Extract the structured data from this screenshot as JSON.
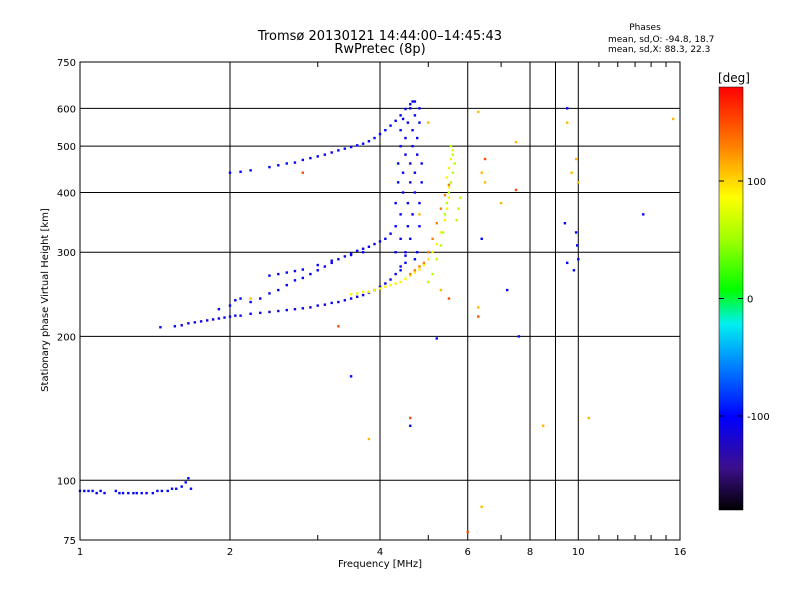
{
  "chart_data": {
    "type": "scatter",
    "title": "Tromsø 20130121 14:44:00–14:45:43",
    "subtitle": "RwPretec (8p)",
    "xlabel": "Frequency [MHz]",
    "ylabel": "Stationary phase Virtual Height [km]",
    "x_scale": "log",
    "y_scale": "log",
    "xlim": [
      1,
      16
    ],
    "ylim": [
      75,
      750
    ],
    "x_ticks": [
      1,
      2,
      4,
      6,
      8,
      10,
      16
    ],
    "x_tick_labels": [
      "1",
      "2",
      "4",
      "6",
      "8",
      "10",
      "16"
    ],
    "x_minor_ticks": [
      3,
      5,
      7,
      9,
      11,
      12,
      13,
      14,
      15
    ],
    "y_ticks": [
      75,
      100,
      200,
      300,
      400,
      500,
      600,
      750
    ],
    "y_tick_labels": [
      "75",
      "100",
      "200",
      "300",
      "400",
      "500",
      "600",
      "750"
    ],
    "grid": true,
    "phases_info": {
      "heading": "Phases",
      "line1": "mean, sd,O: -94.8, 18.7",
      "line2": "mean, sd,X:  88.3, 22.3"
    },
    "colorbar": {
      "label": "[deg]",
      "range": [
        -180,
        180
      ],
      "ticks": [
        100,
        0,
        -100
      ],
      "tick_labels": [
        "100",
        "0",
        "-100"
      ]
    },
    "traces": [
      {
        "phase": -100,
        "points": [
          [
            1.0,
            95
          ],
          [
            1.02,
            95
          ],
          [
            1.04,
            95
          ],
          [
            1.06,
            95
          ],
          [
            1.08,
            94
          ],
          [
            1.1,
            95
          ],
          [
            1.12,
            94
          ],
          [
            1.18,
            95
          ],
          [
            1.2,
            94
          ],
          [
            1.22,
            94
          ],
          [
            1.25,
            94
          ],
          [
            1.28,
            94
          ],
          [
            1.3,
            94
          ],
          [
            1.33,
            94
          ],
          [
            1.36,
            94
          ],
          [
            1.4,
            94
          ],
          [
            1.43,
            95
          ],
          [
            1.46,
            95
          ],
          [
            1.5,
            95
          ],
          [
            1.53,
            96
          ],
          [
            1.56,
            96
          ],
          [
            1.6,
            97
          ],
          [
            1.63,
            99
          ],
          [
            1.65,
            101
          ],
          [
            1.67,
            96
          ]
        ]
      },
      {
        "phase": -110,
        "points": [
          [
            1.45,
            209
          ],
          [
            1.55,
            210
          ],
          [
            1.6,
            211
          ],
          [
            1.65,
            213
          ],
          [
            1.7,
            214
          ],
          [
            1.75,
            215
          ],
          [
            1.8,
            216
          ],
          [
            1.85,
            217
          ],
          [
            1.9,
            218
          ],
          [
            1.95,
            219
          ],
          [
            2.0,
            220
          ],
          [
            2.05,
            221
          ],
          [
            2.1,
            221
          ],
          [
            2.2,
            223
          ],
          [
            2.3,
            224
          ],
          [
            2.4,
            225
          ],
          [
            2.5,
            226
          ],
          [
            2.6,
            227
          ],
          [
            2.7,
            228
          ],
          [
            2.8,
            229
          ],
          [
            2.9,
            230
          ],
          [
            3.0,
            232
          ],
          [
            3.1,
            233
          ],
          [
            3.2,
            235
          ],
          [
            3.3,
            236
          ],
          [
            3.4,
            238
          ],
          [
            3.5,
            240
          ],
          [
            3.6,
            242
          ],
          [
            3.7,
            244
          ],
          [
            3.8,
            247
          ],
          [
            3.9,
            250
          ],
          [
            4.0,
            254
          ],
          [
            4.1,
            258
          ],
          [
            4.2,
            263
          ],
          [
            4.3,
            270
          ],
          [
            4.4,
            280
          ],
          [
            4.5,
            295
          ]
        ]
      },
      {
        "phase": -105,
        "points": [
          [
            1.9,
            228
          ],
          [
            2.0,
            232
          ],
          [
            2.05,
            238
          ],
          [
            2.1,
            240
          ],
          [
            2.2,
            236
          ],
          [
            2.3,
            240
          ],
          [
            2.4,
            246
          ],
          [
            2.5,
            250
          ],
          [
            2.6,
            256
          ],
          [
            2.7,
            262
          ],
          [
            2.8,
            265
          ],
          [
            2.9,
            270
          ],
          [
            3.0,
            275
          ],
          [
            3.1,
            280
          ],
          [
            3.2,
            285
          ],
          [
            3.3,
            290
          ],
          [
            3.4,
            294
          ],
          [
            3.5,
            298
          ],
          [
            3.6,
            302
          ],
          [
            3.7,
            305
          ],
          [
            3.8,
            308
          ],
          [
            3.9,
            312
          ],
          [
            4.0,
            316
          ],
          [
            4.1,
            320
          ],
          [
            4.2,
            328
          ]
        ]
      },
      {
        "phase": -100,
        "points": [
          [
            2.4,
            268
          ],
          [
            2.5,
            270
          ],
          [
            2.6,
            272
          ],
          [
            2.7,
            274
          ],
          [
            2.8,
            276
          ],
          [
            3.0,
            282
          ],
          [
            3.2,
            288
          ],
          [
            3.5,
            296
          ],
          [
            3.7,
            300
          ]
        ]
      },
      {
        "phase": -100,
        "points": [
          [
            2.0,
            440
          ],
          [
            2.1,
            442
          ],
          [
            2.2,
            445
          ],
          [
            2.4,
            452
          ],
          [
            2.5,
            456
          ],
          [
            2.6,
            460
          ],
          [
            2.7,
            462
          ],
          [
            2.8,
            468
          ],
          [
            2.9,
            472
          ],
          [
            3.0,
            476
          ],
          [
            3.1,
            480
          ],
          [
            3.2,
            485
          ],
          [
            3.3,
            490
          ],
          [
            3.4,
            494
          ],
          [
            3.5,
            498
          ],
          [
            3.6,
            502
          ],
          [
            3.7,
            506
          ],
          [
            3.8,
            512
          ],
          [
            3.9,
            520
          ],
          [
            4.0,
            530
          ],
          [
            4.1,
            540
          ],
          [
            4.2,
            552
          ],
          [
            4.3,
            565
          ],
          [
            4.4,
            580
          ],
          [
            4.5,
            598
          ],
          [
            4.6,
            612
          ],
          [
            4.65,
            620
          ]
        ]
      },
      {
        "phase": -105,
        "points": [
          [
            4.3,
            300
          ],
          [
            4.3,
            340
          ],
          [
            4.3,
            380
          ],
          [
            4.35,
            420
          ],
          [
            4.35,
            460
          ],
          [
            4.4,
            500
          ],
          [
            4.4,
            540
          ],
          [
            4.45,
            570
          ],
          [
            4.4,
            320
          ],
          [
            4.4,
            360
          ],
          [
            4.45,
            400
          ],
          [
            4.45,
            440
          ],
          [
            4.5,
            480
          ],
          [
            4.5,
            520
          ],
          [
            4.55,
            560
          ],
          [
            4.6,
            600
          ],
          [
            4.5,
            300
          ],
          [
            4.55,
            340
          ],
          [
            4.55,
            380
          ],
          [
            4.6,
            420
          ],
          [
            4.6,
            460
          ],
          [
            4.65,
            500
          ],
          [
            4.65,
            540
          ],
          [
            4.7,
            580
          ],
          [
            4.7,
            620
          ],
          [
            4.6,
            320
          ],
          [
            4.65,
            360
          ],
          [
            4.7,
            400
          ],
          [
            4.7,
            440
          ],
          [
            4.75,
            480
          ],
          [
            4.75,
            520
          ],
          [
            4.8,
            560
          ],
          [
            4.8,
            600
          ],
          [
            4.75,
            300
          ],
          [
            4.8,
            340
          ],
          [
            4.8,
            380
          ],
          [
            4.85,
            420
          ],
          [
            4.85,
            460
          ],
          [
            4.7,
            290
          ],
          [
            4.5,
            285
          ],
          [
            4.4,
            275
          ]
        ]
      },
      {
        "phase": 90,
        "points": [
          [
            3.5,
            245
          ],
          [
            3.6,
            246
          ],
          [
            3.7,
            248
          ],
          [
            3.8,
            248
          ],
          [
            3.9,
            250
          ],
          [
            4.0,
            252
          ],
          [
            4.1,
            254
          ],
          [
            4.2,
            256
          ],
          [
            4.3,
            258
          ],
          [
            4.4,
            260
          ],
          [
            4.5,
            264
          ],
          [
            4.6,
            268
          ],
          [
            4.7,
            272
          ],
          [
            4.8,
            276
          ],
          [
            4.9,
            282
          ],
          [
            5.0,
            290
          ],
          [
            5.1,
            300
          ],
          [
            5.2,
            312
          ],
          [
            5.3,
            330
          ],
          [
            5.4,
            350
          ],
          [
            5.45,
            370
          ],
          [
            5.5,
            390
          ],
          [
            5.5,
            410
          ],
          [
            5.45,
            430
          ],
          [
            5.5,
            450
          ],
          [
            5.55,
            470
          ],
          [
            5.6,
            490
          ]
        ]
      },
      {
        "phase": 60,
        "points": [
          [
            5.0,
            260
          ],
          [
            5.1,
            270
          ],
          [
            5.2,
            290
          ],
          [
            5.3,
            310
          ],
          [
            5.35,
            330
          ],
          [
            5.4,
            360
          ],
          [
            5.45,
            380
          ],
          [
            5.5,
            400
          ],
          [
            5.55,
            420
          ],
          [
            5.6,
            440
          ],
          [
            5.65,
            460
          ],
          [
            5.6,
            480
          ],
          [
            5.55,
            500
          ],
          [
            5.7,
            350
          ],
          [
            5.75,
            370
          ],
          [
            5.8,
            390
          ]
        ]
      },
      {
        "phase": 130,
        "points": [
          [
            4.6,
            270
          ],
          [
            4.7,
            275
          ],
          [
            4.8,
            280
          ],
          [
            4.9,
            285
          ],
          [
            5.0,
            300
          ],
          [
            5.1,
            320
          ],
          [
            5.2,
            345
          ],
          [
            5.3,
            370
          ],
          [
            5.4,
            395
          ],
          [
            5.5,
            415
          ]
        ]
      },
      {
        "phase": -100,
        "points": [
          [
            9.5,
            600
          ],
          [
            9.9,
            330
          ],
          [
            9.95,
            310
          ],
          [
            10.0,
            290
          ],
          [
            9.8,
            275
          ],
          [
            9.5,
            285
          ],
          [
            13.5,
            360
          ],
          [
            9.4,
            345
          ],
          [
            7.6,
            200
          ],
          [
            6.4,
            320
          ],
          [
            7.2,
            250
          ],
          [
            4.6,
            130
          ],
          [
            3.5,
            165
          ],
          [
            5.2,
            198
          ]
        ]
      },
      {
        "phase": 110,
        "points": [
          [
            6.3,
            590
          ],
          [
            6.4,
            440
          ],
          [
            6.5,
            420
          ],
          [
            7.0,
            380
          ],
          [
            7.5,
            510
          ],
          [
            9.5,
            560
          ],
          [
            9.7,
            440
          ],
          [
            9.9,
            470
          ],
          [
            10.0,
            420
          ],
          [
            15.5,
            570
          ],
          [
            5.0,
            560
          ],
          [
            10.5,
            135
          ],
          [
            8.5,
            130
          ],
          [
            6.4,
            88
          ],
          [
            6.3,
            230
          ],
          [
            5.3,
            250
          ],
          [
            4.8,
            360
          ],
          [
            3.8,
            122
          ],
          [
            2.2,
            240
          ]
        ]
      },
      {
        "phase": 150,
        "points": [
          [
            6.3,
            220
          ],
          [
            5.5,
            240
          ],
          [
            6.5,
            470
          ],
          [
            7.5,
            405
          ],
          [
            2.8,
            440
          ],
          [
            3.3,
            210
          ],
          [
            4.6,
            135
          ],
          [
            6.0,
            78
          ]
        ]
      }
    ]
  }
}
